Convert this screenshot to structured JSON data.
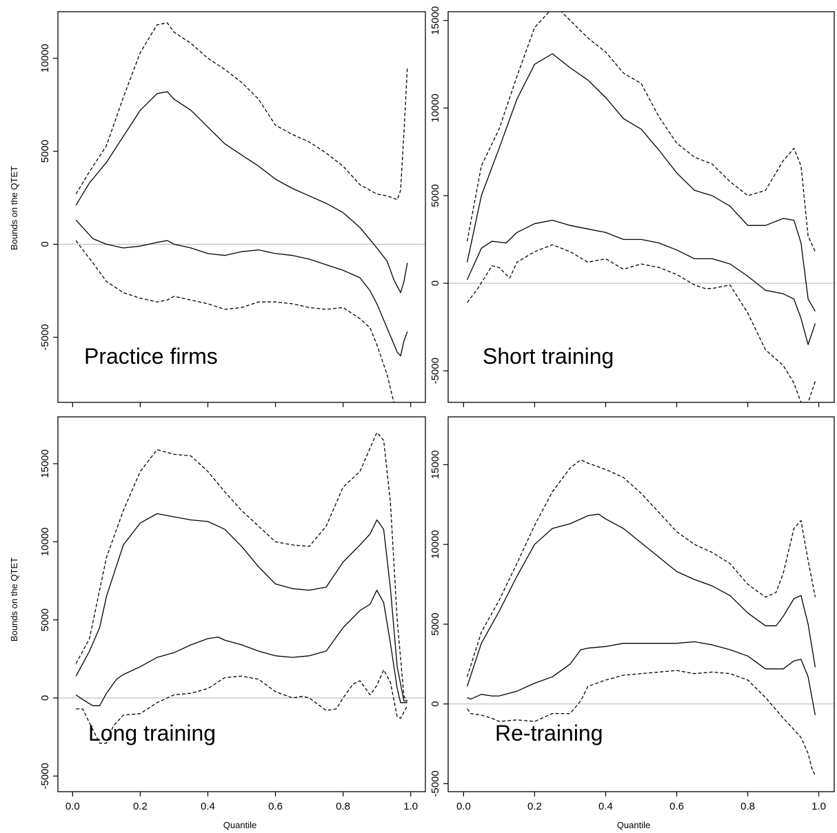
{
  "figure": {
    "ylabel": "Bounds on the QTET",
    "xlabel": "Quantile",
    "zero_line_color": "#bfbfbf"
  },
  "chart_data": [
    {
      "type": "line",
      "label": "Practice firms",
      "xlim": [
        0,
        1
      ],
      "ylim": [
        -8500,
        12500
      ],
      "xticks": [
        0.0,
        0.2,
        0.4,
        0.6,
        0.8,
        1.0
      ],
      "xtick_labels": [
        "0.0",
        "0.2",
        "0.4",
        "0.6",
        "0.8",
        "1.0"
      ],
      "show_xtick_labels": false,
      "yticks": [
        -5000,
        0,
        5000,
        10000
      ],
      "ytick_labels": [
        "-5000",
        "0",
        "5000",
        "10000"
      ],
      "grid": false,
      "series": [
        {
          "role": "upper confidence bound",
          "style": "dashed",
          "x": [
            0.01,
            0.05,
            0.1,
            0.15,
            0.2,
            0.25,
            0.28,
            0.3,
            0.35,
            0.4,
            0.45,
            0.5,
            0.55,
            0.6,
            0.65,
            0.7,
            0.75,
            0.8,
            0.85,
            0.9,
            0.93,
            0.96,
            0.97,
            0.98,
            0.99
          ],
          "y": [
            2700,
            3900,
            5300,
            7900,
            10300,
            11800,
            11900,
            11400,
            10800,
            10000,
            9400,
            8700,
            7800,
            6400,
            5900,
            5500,
            4900,
            4200,
            3200,
            2700,
            2600,
            2400,
            2900,
            6000,
            9500
          ]
        },
        {
          "role": "upper bound",
          "style": "solid",
          "x": [
            0.01,
            0.05,
            0.1,
            0.15,
            0.2,
            0.25,
            0.28,
            0.3,
            0.35,
            0.4,
            0.45,
            0.5,
            0.55,
            0.6,
            0.65,
            0.7,
            0.75,
            0.8,
            0.85,
            0.9,
            0.93,
            0.95,
            0.97,
            0.98,
            0.99
          ],
          "y": [
            2100,
            3300,
            4400,
            5800,
            7200,
            8100,
            8200,
            7800,
            7200,
            6300,
            5400,
            4800,
            4200,
            3500,
            3000,
            2600,
            2200,
            1700,
            900,
            -200,
            -900,
            -1900,
            -2600,
            -2000,
            -1000
          ]
        },
        {
          "role": "lower bound",
          "style": "solid",
          "x": [
            0.01,
            0.03,
            0.06,
            0.1,
            0.15,
            0.2,
            0.25,
            0.28,
            0.3,
            0.35,
            0.4,
            0.45,
            0.5,
            0.55,
            0.6,
            0.65,
            0.7,
            0.75,
            0.8,
            0.85,
            0.88,
            0.9,
            0.93,
            0.96,
            0.97,
            0.98,
            0.99
          ],
          "y": [
            1300,
            900,
            300,
            0,
            -200,
            -100,
            100,
            200,
            0,
            -200,
            -500,
            -600,
            -400,
            -300,
            -500,
            -600,
            -800,
            -1100,
            -1400,
            -1800,
            -2500,
            -3200,
            -4500,
            -5800,
            -6000,
            -5200,
            -4700
          ]
        },
        {
          "role": "lower confidence bound",
          "style": "dashed",
          "x": [
            0.01,
            0.03,
            0.06,
            0.1,
            0.15,
            0.2,
            0.25,
            0.28,
            0.3,
            0.35,
            0.4,
            0.45,
            0.5,
            0.55,
            0.6,
            0.65,
            0.7,
            0.75,
            0.8,
            0.85,
            0.88,
            0.9,
            0.93,
            0.95
          ],
          "y": [
            200,
            -300,
            -1000,
            -2000,
            -2600,
            -2900,
            -3100,
            -3000,
            -2800,
            -3000,
            -3200,
            -3500,
            -3400,
            -3100,
            -3100,
            -3200,
            -3400,
            -3500,
            -3400,
            -4000,
            -4500,
            -5400,
            -7000,
            -8500
          ]
        }
      ]
    },
    {
      "type": "line",
      "label": "Short training",
      "xlim": [
        0,
        1
      ],
      "ylim": [
        -6800,
        15500
      ],
      "xticks": [
        0.0,
        0.2,
        0.4,
        0.6,
        0.8,
        1.0
      ],
      "xtick_labels": [
        "0.0",
        "0.2",
        "0.4",
        "0.6",
        "0.8",
        "1.0"
      ],
      "show_xtick_labels": false,
      "yticks": [
        -5000,
        0,
        5000,
        10000,
        15000
      ],
      "ytick_labels": [
        "-5000",
        "0",
        "5000",
        "10000",
        "15000"
      ],
      "grid": false,
      "series": [
        {
          "role": "upper confidence bound",
          "style": "dashed",
          "x": [
            0.01,
            0.05,
            0.1,
            0.15,
            0.2,
            0.25,
            0.27,
            0.3,
            0.35,
            0.4,
            0.45,
            0.5,
            0.55,
            0.6,
            0.65,
            0.7,
            0.75,
            0.8,
            0.85,
            0.9,
            0.93,
            0.95,
            0.97,
            0.99
          ],
          "y": [
            2400,
            6700,
            8800,
            11800,
            14600,
            15700,
            15600,
            15000,
            14000,
            13200,
            12000,
            11400,
            9500,
            8000,
            7200,
            6800,
            5800,
            5000,
            5300,
            7000,
            7700,
            6700,
            2700,
            1800
          ]
        },
        {
          "role": "upper bound",
          "style": "solid",
          "x": [
            0.01,
            0.05,
            0.1,
            0.15,
            0.2,
            0.25,
            0.3,
            0.35,
            0.4,
            0.45,
            0.5,
            0.55,
            0.6,
            0.65,
            0.7,
            0.75,
            0.8,
            0.85,
            0.9,
            0.93,
            0.95,
            0.97,
            0.99
          ],
          "y": [
            1200,
            5000,
            7700,
            10500,
            12500,
            13100,
            12300,
            11600,
            10600,
            9400,
            8800,
            7600,
            6300,
            5300,
            5000,
            4400,
            3300,
            3300,
            3700,
            3600,
            2300,
            -900,
            -1600
          ]
        },
        {
          "role": "lower bound",
          "style": "solid",
          "x": [
            0.01,
            0.05,
            0.08,
            0.12,
            0.15,
            0.2,
            0.25,
            0.3,
            0.35,
            0.4,
            0.45,
            0.5,
            0.55,
            0.6,
            0.65,
            0.7,
            0.75,
            0.8,
            0.85,
            0.9,
            0.93,
            0.95,
            0.97,
            0.99
          ],
          "y": [
            200,
            2000,
            2400,
            2300,
            2900,
            3400,
            3600,
            3300,
            3100,
            2900,
            2500,
            2500,
            2300,
            1900,
            1400,
            1400,
            1100,
            400,
            -400,
            -600,
            -900,
            -2000,
            -3500,
            -2300
          ]
        },
        {
          "role": "lower confidence bound",
          "style": "dashed",
          "x": [
            0.01,
            0.04,
            0.08,
            0.1,
            0.13,
            0.15,
            0.2,
            0.25,
            0.3,
            0.35,
            0.4,
            0.45,
            0.5,
            0.55,
            0.6,
            0.65,
            0.68,
            0.7,
            0.75,
            0.8,
            0.85,
            0.9,
            0.93,
            0.95,
            0.97,
            0.99
          ],
          "y": [
            -1100,
            -300,
            1000,
            900,
            300,
            1200,
            1800,
            2200,
            1800,
            1200,
            1400,
            800,
            1100,
            900,
            500,
            -100,
            -300,
            -300,
            -100,
            -1700,
            -3800,
            -4700,
            -5700,
            -6800,
            -6800,
            -5600
          ]
        }
      ]
    },
    {
      "type": "line",
      "label": "Long training",
      "xlim": [
        0,
        1
      ],
      "ylim": [
        -6000,
        18000
      ],
      "xticks": [
        0.0,
        0.2,
        0.4,
        0.6,
        0.8,
        1.0
      ],
      "xtick_labels": [
        "0.0",
        "0.2",
        "0.4",
        "0.6",
        "0.8",
        "1.0"
      ],
      "show_xtick_labels": true,
      "yticks": [
        -5000,
        0,
        5000,
        10000,
        15000
      ],
      "ytick_labels": [
        "-5000",
        "0",
        "5000",
        "10000",
        "15000"
      ],
      "grid": false,
      "series": [
        {
          "role": "upper confidence bound",
          "style": "dashed",
          "x": [
            0.01,
            0.05,
            0.1,
            0.15,
            0.2,
            0.25,
            0.3,
            0.35,
            0.4,
            0.45,
            0.5,
            0.55,
            0.6,
            0.65,
            0.7,
            0.75,
            0.8,
            0.85,
            0.88,
            0.9,
            0.92,
            0.94,
            0.96,
            0.98,
            0.99
          ],
          "y": [
            2200,
            3800,
            9000,
            12000,
            14500,
            15900,
            15600,
            15500,
            14500,
            13200,
            12000,
            11000,
            10000,
            9800,
            9700,
            11000,
            13500,
            14500,
            16000,
            17000,
            16500,
            12500,
            5000,
            100,
            -200
          ]
        },
        {
          "role": "upper bound",
          "style": "solid",
          "x": [
            0.01,
            0.05,
            0.08,
            0.1,
            0.15,
            0.2,
            0.25,
            0.3,
            0.35,
            0.4,
            0.45,
            0.5,
            0.55,
            0.6,
            0.65,
            0.7,
            0.75,
            0.8,
            0.85,
            0.88,
            0.9,
            0.92,
            0.94,
            0.96,
            0.98,
            0.99
          ],
          "y": [
            1400,
            3000,
            4500,
            6500,
            9800,
            11200,
            11800,
            11600,
            11400,
            11300,
            10800,
            9700,
            8400,
            7300,
            7000,
            6900,
            7100,
            8700,
            9800,
            10500,
            11400,
            10800,
            7000,
            2000,
            -200,
            -200
          ]
        },
        {
          "role": "lower bound",
          "style": "solid",
          "x": [
            0.01,
            0.03,
            0.06,
            0.08,
            0.1,
            0.13,
            0.15,
            0.2,
            0.25,
            0.3,
            0.35,
            0.4,
            0.43,
            0.45,
            0.5,
            0.55,
            0.6,
            0.65,
            0.7,
            0.75,
            0.8,
            0.85,
            0.88,
            0.9,
            0.92,
            0.94,
            0.96,
            0.97,
            0.98,
            0.99
          ],
          "y": [
            200,
            -100,
            -500,
            -500,
            300,
            1200,
            1500,
            2000,
            2600,
            2900,
            3400,
            3800,
            3900,
            3700,
            3400,
            3000,
            2700,
            2600,
            2700,
            3000,
            4500,
            5600,
            6000,
            6900,
            6100,
            3500,
            600,
            -300,
            -300,
            -300
          ]
        },
        {
          "role": "lower confidence bound",
          "style": "dashed",
          "x": [
            0.01,
            0.03,
            0.05,
            0.08,
            0.1,
            0.12,
            0.15,
            0.2,
            0.25,
            0.3,
            0.35,
            0.4,
            0.45,
            0.5,
            0.55,
            0.6,
            0.65,
            0.68,
            0.7,
            0.75,
            0.78,
            0.8,
            0.83,
            0.85,
            0.88,
            0.9,
            0.92,
            0.94,
            0.96,
            0.97,
            0.99
          ],
          "y": [
            -700,
            -700,
            -1600,
            -2900,
            -2900,
            -1800,
            -1100,
            -1000,
            -300,
            200,
            300,
            600,
            1300,
            1400,
            1200,
            400,
            0,
            100,
            0,
            -800,
            -700,
            0,
            900,
            1100,
            200,
            800,
            1800,
            1000,
            -1200,
            -1300,
            -500
          ]
        }
      ]
    },
    {
      "type": "line",
      "label": "Re-training",
      "xlim": [
        0,
        1
      ],
      "ylim": [
        -5500,
        18000
      ],
      "xticks": [
        0.0,
        0.2,
        0.4,
        0.6,
        0.8,
        1.0
      ],
      "xtick_labels": [
        "0.0",
        "0.2",
        "0.4",
        "0.6",
        "0.8",
        "1.0"
      ],
      "show_xtick_labels": true,
      "yticks": [
        -5000,
        0,
        5000,
        10000,
        15000
      ],
      "ytick_labels": [
        "-5000",
        "0",
        "5000",
        "10000",
        "15000"
      ],
      "grid": false,
      "series": [
        {
          "role": "upper confidence bound",
          "style": "dashed",
          "x": [
            0.01,
            0.05,
            0.1,
            0.15,
            0.2,
            0.25,
            0.3,
            0.33,
            0.35,
            0.4,
            0.45,
            0.5,
            0.55,
            0.6,
            0.65,
            0.7,
            0.75,
            0.8,
            0.85,
            0.88,
            0.9,
            0.93,
            0.95,
            0.97,
            0.99
          ],
          "y": [
            1700,
            4500,
            6500,
            8800,
            11200,
            13300,
            14800,
            15300,
            15100,
            14700,
            14200,
            13200,
            12000,
            10800,
            10000,
            9500,
            8800,
            7500,
            6700,
            7000,
            8200,
            11000,
            11500,
            9000,
            6700
          ]
        },
        {
          "role": "upper bound",
          "style": "solid",
          "x": [
            0.01,
            0.05,
            0.1,
            0.15,
            0.2,
            0.25,
            0.3,
            0.35,
            0.38,
            0.4,
            0.45,
            0.5,
            0.55,
            0.6,
            0.65,
            0.7,
            0.75,
            0.8,
            0.85,
            0.88,
            0.9,
            0.93,
            0.95,
            0.97,
            0.99
          ],
          "y": [
            1100,
            3800,
            5800,
            8000,
            10000,
            11000,
            11300,
            11800,
            11900,
            11600,
            11000,
            10100,
            9200,
            8300,
            7800,
            7400,
            6800,
            5700,
            4900,
            4900,
            5500,
            6600,
            6800,
            5000,
            2300
          ]
        },
        {
          "role": "lower bound",
          "style": "solid",
          "x": [
            0.01,
            0.02,
            0.05,
            0.08,
            0.1,
            0.15,
            0.2,
            0.25,
            0.3,
            0.33,
            0.35,
            0.4,
            0.45,
            0.5,
            0.55,
            0.6,
            0.65,
            0.7,
            0.75,
            0.8,
            0.85,
            0.9,
            0.93,
            0.95,
            0.97,
            0.99
          ],
          "y": [
            400,
            300,
            600,
            500,
            500,
            800,
            1300,
            1700,
            2500,
            3400,
            3500,
            3600,
            3800,
            3800,
            3800,
            3800,
            3900,
            3700,
            3400,
            3000,
            2200,
            2200,
            2700,
            2800,
            1700,
            -700
          ]
        },
        {
          "role": "lower confidence bound",
          "style": "dashed",
          "x": [
            0.01,
            0.02,
            0.05,
            0.08,
            0.1,
            0.15,
            0.2,
            0.25,
            0.3,
            0.33,
            0.35,
            0.4,
            0.45,
            0.5,
            0.55,
            0.6,
            0.65,
            0.7,
            0.75,
            0.8,
            0.85,
            0.9,
            0.93,
            0.95,
            0.97,
            0.98,
            0.99
          ],
          "y": [
            -300,
            -600,
            -700,
            -900,
            -1100,
            -1000,
            -1100,
            -600,
            -600,
            200,
            1100,
            1500,
            1800,
            1900,
            2000,
            2100,
            1900,
            2000,
            1900,
            1500,
            400,
            -900,
            -1600,
            -2100,
            -3100,
            -4000,
            -4500
          ]
        }
      ]
    }
  ]
}
